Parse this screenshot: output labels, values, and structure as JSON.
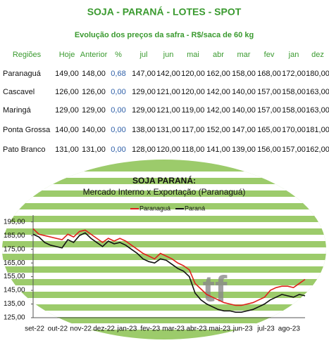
{
  "header": {
    "title": "SOJA - PARANÁ - LOTES - SPOT",
    "subtitle": "Evolução dos preços da safra - R$/saca de 60 kg"
  },
  "table": {
    "columns": [
      "Regiões",
      "Hoje",
      "Anterior",
      "%",
      "jul",
      "jun",
      "mai",
      "abr",
      "mar",
      "fev",
      "jan",
      "dez"
    ],
    "rows": [
      [
        "Paranaguá",
        "149,00",
        "148,00",
        "0,68",
        "147,00",
        "142,00",
        "120,00",
        "162,00",
        "158,00",
        "168,00",
        "172,00",
        "180,00"
      ],
      [
        "Cascavel",
        "126,00",
        "126,00",
        "0,00",
        "129,00",
        "121,00",
        "120,00",
        "142,00",
        "140,00",
        "157,00",
        "158,00",
        "163,00"
      ],
      [
        "Maringá",
        "129,00",
        "129,00",
        "0,00",
        "129,00",
        "121,00",
        "119,00",
        "142,00",
        "140,00",
        "157,00",
        "158,00",
        "163,00"
      ],
      [
        "Ponta Grossa",
        "140,00",
        "140,00",
        "0,00",
        "138,00",
        "131,00",
        "117,00",
        "152,00",
        "147,00",
        "165,00",
        "170,00",
        "181,00"
      ],
      [
        "Pato Branco",
        "131,00",
        "131,00",
        "0,00",
        "128,00",
        "120,00",
        "118,00",
        "141,00",
        "139,00",
        "156,00",
        "157,00",
        "162,00"
      ]
    ]
  },
  "chart_data": {
    "type": "line",
    "title": "SOJA PARANÁ:",
    "subtitle": "Mercado Interno x Exportação (Paranaguá)",
    "categories": [
      "set-22",
      null,
      null,
      null,
      "out-22",
      null,
      null,
      null,
      "nov-22",
      null,
      null,
      null,
      "dez-22",
      null,
      null,
      null,
      "jan-23",
      null,
      null,
      null,
      "fev-23",
      null,
      null,
      null,
      "mar-23",
      null,
      null,
      null,
      "abr-23",
      null,
      null,
      null,
      "mai-23",
      null,
      null,
      null,
      "jun-23",
      null,
      null,
      null,
      "jul-23",
      null,
      null,
      null,
      "ago-23",
      null,
      null,
      null
    ],
    "series": [
      {
        "name": "Paranaguá",
        "color": "#e0201b",
        "values": [
          190,
          186,
          185,
          184,
          183,
          182,
          186,
          184,
          188,
          189,
          186,
          183,
          180,
          183,
          181,
          183,
          181,
          178,
          175,
          172,
          170,
          168,
          172,
          170,
          168,
          165,
          163,
          160,
          150,
          146,
          142,
          140,
          138,
          136,
          135,
          134,
          134,
          135,
          136,
          138,
          140,
          145,
          147,
          148,
          148,
          147,
          150,
          153
        ]
      },
      {
        "name": "Paraná",
        "color": "#111111",
        "values": [
          186,
          184,
          180,
          178,
          177,
          176,
          182,
          180,
          185,
          187,
          183,
          180,
          177,
          181,
          179,
          180,
          178,
          175,
          172,
          168,
          166,
          165,
          168,
          167,
          164,
          161,
          159,
          155,
          143,
          138,
          135,
          133,
          131,
          130,
          130,
          129,
          129,
          130,
          131,
          133,
          135,
          138,
          140,
          142,
          141,
          140,
          142,
          141
        ]
      }
    ],
    "ylim": [
      125,
      200
    ],
    "yticks": [
      {
        "value": 125,
        "label": "125,00"
      },
      {
        "value": 135,
        "label": "135,00"
      },
      {
        "value": 145,
        "label": "145,00"
      },
      {
        "value": 155,
        "label": "155,00"
      },
      {
        "value": 165,
        "label": "165,00"
      },
      {
        "value": 175,
        "label": "175,00"
      },
      {
        "value": 185,
        "label": "185,00"
      },
      {
        "value": 195,
        "label": "195,00"
      }
    ],
    "legend": "top"
  }
}
